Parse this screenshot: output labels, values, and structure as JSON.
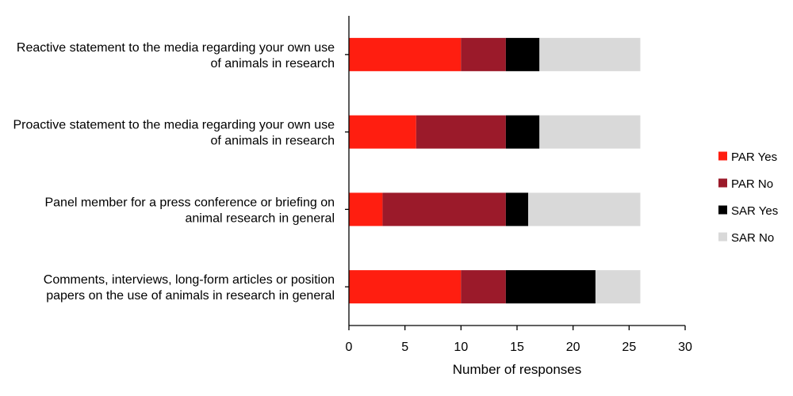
{
  "chart_data": {
    "type": "bar",
    "orientation": "horizontal",
    "stacked": true,
    "categories": [
      [
        "Reactive statement to the media regarding your own use",
        "of animals in research"
      ],
      [
        "Proactive statement to the media regarding your own use",
        "of animals in research"
      ],
      [
        "Panel member for a press conference or briefing on",
        "animal research in general"
      ],
      [
        "Comments, interviews, long-form articles or position",
        "papers on the use of animals in research in general"
      ]
    ],
    "series": [
      {
        "name": "PAR Yes",
        "color": "#ff1e10",
        "values": [
          10,
          6,
          3,
          10
        ]
      },
      {
        "name": "PAR No",
        "color": "#9b1a2a",
        "values": [
          4,
          8,
          11,
          4
        ]
      },
      {
        "name": "SAR Yes",
        "color": "#000000",
        "values": [
          3,
          3,
          2,
          8
        ]
      },
      {
        "name": "SAR No",
        "color": "#d9d9d9",
        "values": [
          9,
          9,
          10,
          4
        ]
      }
    ],
    "xlabel": "Number of responses",
    "ylabel": "",
    "xlim": [
      0,
      30
    ],
    "xticks": [
      0,
      5,
      10,
      15,
      20,
      25,
      30
    ],
    "grid": false,
    "legend_position": "right"
  }
}
